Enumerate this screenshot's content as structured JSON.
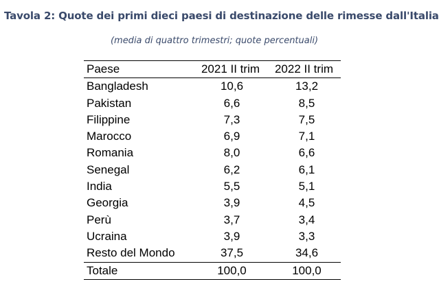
{
  "title": "Tavola 2: Quote dei primi dieci paesi di destinazione delle rimesse dall'Italia",
  "subtitle": "(media di quattro trimestri; quote percentuali)",
  "table": {
    "headers": [
      "Paese",
      "2021 II trim",
      "2022 II trim"
    ],
    "rows": [
      [
        "Bangladesh",
        "10,6",
        "13,2"
      ],
      [
        "Pakistan",
        "6,6",
        "8,5"
      ],
      [
        "Filippine",
        "7,3",
        "7,5"
      ],
      [
        "Marocco",
        "6,9",
        "7,1"
      ],
      [
        "Romania",
        "8,0",
        "6,6"
      ],
      [
        "Senegal",
        "6,2",
        "6,1"
      ],
      [
        "India",
        "5,5",
        "5,1"
      ],
      [
        "Georgia",
        "3,9",
        "4,5"
      ],
      [
        "Perù",
        "3,7",
        "3,4"
      ],
      [
        "Ucraina",
        "3,9",
        "3,3"
      ],
      [
        "Resto del Mondo",
        "37,5",
        "34,6"
      ]
    ],
    "total": [
      "Totale",
      "100,0",
      "100,0"
    ]
  }
}
